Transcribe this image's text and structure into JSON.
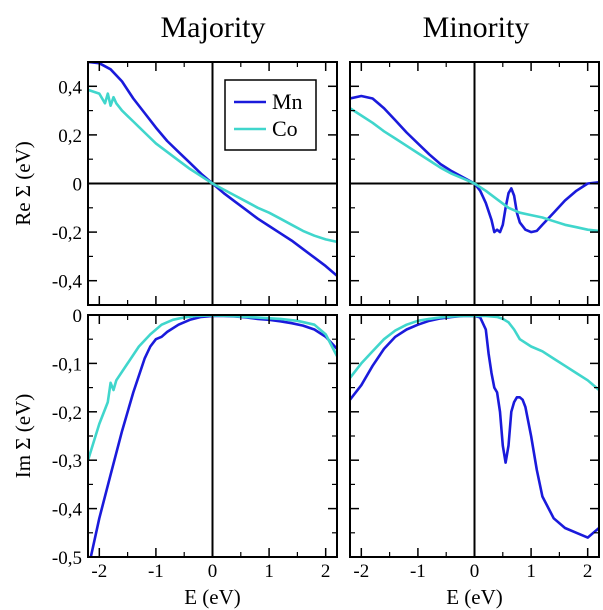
{
  "colors": {
    "Mn": "#1a1adb",
    "Co": "#40d6cc"
  },
  "column_titles": [
    "Majority",
    "Minority"
  ],
  "legend": [
    {
      "name": "Mn",
      "color": "#1a1adb"
    },
    {
      "name": "Co",
      "color": "#40d6cc"
    }
  ],
  "chart_data": [
    {
      "type": "line",
      "panel": "top-left",
      "title": "Majority",
      "ylabel": "Re Σ (eV)",
      "xlabel": "",
      "xlim": [
        -2.2,
        2.2
      ],
      "ylim": [
        -0.5,
        0.5
      ],
      "xticks": [
        -2,
        -1,
        0,
        1,
        2
      ],
      "yticks": [
        0.4,
        0.2,
        0,
        -0.2,
        -0.4
      ],
      "ytick_labels": [
        "0,4",
        "0,2",
        "0",
        "-0,2",
        "-0,4"
      ],
      "xtick_labels": [],
      "legend_position": "top-right",
      "series": [
        {
          "name": "Mn",
          "x": [
            -2.2,
            -2.0,
            -1.8,
            -1.6,
            -1.4,
            -1.2,
            -1.0,
            -0.8,
            -0.6,
            -0.4,
            -0.2,
            0.0,
            0.2,
            0.4,
            0.6,
            0.8,
            1.0,
            1.2,
            1.4,
            1.6,
            1.8,
            2.0,
            2.2
          ],
          "y": [
            0.5,
            0.495,
            0.47,
            0.42,
            0.35,
            0.29,
            0.23,
            0.175,
            0.13,
            0.085,
            0.04,
            0.0,
            -0.04,
            -0.075,
            -0.11,
            -0.145,
            -0.175,
            -0.205,
            -0.235,
            -0.27,
            -0.305,
            -0.34,
            -0.38
          ]
        },
        {
          "name": "Co",
          "x": [
            -2.2,
            -2.0,
            -1.9,
            -1.85,
            -1.8,
            -1.75,
            -1.7,
            -1.6,
            -1.4,
            -1.2,
            -1.0,
            -0.8,
            -0.6,
            -0.4,
            -0.2,
            0.0,
            0.2,
            0.4,
            0.6,
            0.8,
            1.0,
            1.2,
            1.4,
            1.6,
            1.8,
            2.0,
            2.2
          ],
          "y": [
            0.385,
            0.37,
            0.33,
            0.37,
            0.32,
            0.355,
            0.33,
            0.3,
            0.255,
            0.21,
            0.165,
            0.13,
            0.095,
            0.06,
            0.03,
            0.0,
            -0.025,
            -0.05,
            -0.075,
            -0.1,
            -0.12,
            -0.145,
            -0.17,
            -0.195,
            -0.215,
            -0.23,
            -0.24
          ]
        }
      ]
    },
    {
      "type": "line",
      "panel": "top-right",
      "title": "Minority",
      "ylabel": "",
      "xlabel": "",
      "xlim": [
        -2.2,
        2.2
      ],
      "ylim": [
        -0.5,
        0.5
      ],
      "xticks": [
        -2,
        -1,
        0,
        1,
        2
      ],
      "yticks": [
        0.4,
        0.2,
        0,
        -0.2,
        -0.4
      ],
      "ytick_labels": [],
      "xtick_labels": [],
      "series": [
        {
          "name": "Mn",
          "x": [
            -2.2,
            -2.0,
            -1.8,
            -1.6,
            -1.4,
            -1.2,
            -1.0,
            -0.8,
            -0.6,
            -0.4,
            -0.2,
            0.0,
            0.1,
            0.2,
            0.3,
            0.35,
            0.4,
            0.45,
            0.5,
            0.55,
            0.6,
            0.65,
            0.7,
            0.75,
            0.8,
            0.9,
            1.0,
            1.1,
            1.2,
            1.4,
            1.6,
            1.8,
            2.0,
            2.2
          ],
          "y": [
            0.35,
            0.36,
            0.35,
            0.31,
            0.26,
            0.21,
            0.165,
            0.12,
            0.08,
            0.05,
            0.025,
            0.0,
            -0.03,
            -0.08,
            -0.15,
            -0.2,
            -0.19,
            -0.2,
            -0.17,
            -0.1,
            -0.04,
            -0.02,
            -0.05,
            -0.12,
            -0.16,
            -0.19,
            -0.2,
            -0.195,
            -0.17,
            -0.12,
            -0.07,
            -0.03,
            0.0,
            0.005
          ]
        },
        {
          "name": "Co",
          "x": [
            -2.2,
            -2.0,
            -1.8,
            -1.6,
            -1.4,
            -1.2,
            -1.0,
            -0.8,
            -0.6,
            -0.4,
            -0.2,
            0.0,
            0.2,
            0.4,
            0.6,
            0.8,
            1.0,
            1.2,
            1.4,
            1.6,
            1.8,
            2.0,
            2.2
          ],
          "y": [
            0.31,
            0.28,
            0.25,
            0.215,
            0.185,
            0.155,
            0.125,
            0.095,
            0.065,
            0.04,
            0.02,
            0.0,
            -0.03,
            -0.065,
            -0.1,
            -0.12,
            -0.13,
            -0.14,
            -0.155,
            -0.17,
            -0.18,
            -0.19,
            -0.195
          ]
        }
      ]
    },
    {
      "type": "line",
      "panel": "bottom-left",
      "title": "",
      "ylabel": "Im Σ (eV)",
      "xlabel": "E (eV)",
      "xlim": [
        -2.2,
        2.2
      ],
      "ylim": [
        -0.5,
        0
      ],
      "xticks": [
        -2,
        -1,
        0,
        1,
        2
      ],
      "xtick_labels": [
        "-2",
        "-1",
        "0",
        "1",
        "2"
      ],
      "yticks": [
        0,
        -0.1,
        -0.2,
        -0.3,
        -0.4,
        -0.5
      ],
      "ytick_labels": [
        "0",
        "-0,1",
        "-0,2",
        "-0,3",
        "-0,4",
        "-0,5"
      ],
      "series": [
        {
          "name": "Mn",
          "x": [
            -2.15,
            -2.0,
            -1.8,
            -1.6,
            -1.4,
            -1.2,
            -1.1,
            -1.0,
            -0.9,
            -0.8,
            -0.6,
            -0.4,
            -0.2,
            0.0,
            0.2,
            0.4,
            0.6,
            0.8,
            1.0,
            1.2,
            1.4,
            1.6,
            1.8,
            2.0,
            2.2
          ],
          "y": [
            -0.5,
            -0.42,
            -0.33,
            -0.24,
            -0.16,
            -0.09,
            -0.065,
            -0.05,
            -0.045,
            -0.035,
            -0.02,
            -0.01,
            -0.004,
            -0.002,
            -0.002,
            -0.003,
            -0.005,
            -0.008,
            -0.01,
            -0.013,
            -0.017,
            -0.022,
            -0.03,
            -0.045,
            -0.07
          ]
        },
        {
          "name": "Co",
          "x": [
            -2.2,
            -2.0,
            -1.85,
            -1.8,
            -1.75,
            -1.7,
            -1.5,
            -1.3,
            -1.1,
            -0.9,
            -0.7,
            -0.5,
            -0.3,
            0.0,
            0.3,
            0.6,
            0.9,
            1.2,
            1.5,
            1.8,
            2.0,
            2.2
          ],
          "y": [
            -0.3,
            -0.225,
            -0.18,
            -0.14,
            -0.155,
            -0.135,
            -0.1,
            -0.065,
            -0.04,
            -0.02,
            -0.01,
            -0.005,
            -0.002,
            -0.001,
            -0.002,
            -0.004,
            -0.006,
            -0.008,
            -0.012,
            -0.02,
            -0.04,
            -0.085
          ]
        }
      ]
    },
    {
      "type": "line",
      "panel": "bottom-right",
      "title": "",
      "ylabel": "",
      "xlabel": "E (eV)",
      "xlim": [
        -2.2,
        2.2
      ],
      "ylim": [
        -0.5,
        0
      ],
      "xticks": [
        -2,
        -1,
        0,
        1,
        2
      ],
      "xtick_labels": [
        "-2",
        "-1",
        "0",
        "1",
        "2"
      ],
      "yticks": [
        0,
        -0.1,
        -0.2,
        -0.3,
        -0.4,
        -0.5
      ],
      "ytick_labels": [],
      "series": [
        {
          "name": "Mn",
          "x": [
            -2.2,
            -2.0,
            -1.8,
            -1.6,
            -1.4,
            -1.2,
            -1.0,
            -0.8,
            -0.6,
            -0.4,
            -0.2,
            0.0,
            0.1,
            0.2,
            0.25,
            0.3,
            0.35,
            0.4,
            0.45,
            0.5,
            0.55,
            0.6,
            0.65,
            0.7,
            0.75,
            0.8,
            0.85,
            0.9,
            1.0,
            1.1,
            1.2,
            1.4,
            1.6,
            1.8,
            2.0,
            2.1,
            2.2
          ],
          "y": [
            -0.175,
            -0.145,
            -0.105,
            -0.07,
            -0.045,
            -0.03,
            -0.02,
            -0.012,
            -0.007,
            -0.004,
            -0.002,
            -0.002,
            -0.005,
            -0.03,
            -0.08,
            -0.12,
            -0.15,
            -0.16,
            -0.2,
            -0.27,
            -0.305,
            -0.27,
            -0.2,
            -0.18,
            -0.17,
            -0.17,
            -0.175,
            -0.19,
            -0.25,
            -0.32,
            -0.375,
            -0.42,
            -0.44,
            -0.45,
            -0.46,
            -0.45,
            -0.44
          ]
        },
        {
          "name": "Co",
          "x": [
            -2.2,
            -2.0,
            -1.8,
            -1.6,
            -1.4,
            -1.2,
            -1.0,
            -0.8,
            -0.6,
            -0.4,
            -0.2,
            0.0,
            0.2,
            0.4,
            0.5,
            0.6,
            0.7,
            0.8,
            1.0,
            1.2,
            1.4,
            1.6,
            1.8,
            2.0,
            2.2
          ],
          "y": [
            -0.13,
            -0.1,
            -0.075,
            -0.05,
            -0.032,
            -0.02,
            -0.012,
            -0.008,
            -0.005,
            -0.003,
            -0.002,
            -0.002,
            -0.002,
            -0.004,
            -0.008,
            -0.015,
            -0.03,
            -0.05,
            -0.065,
            -0.075,
            -0.09,
            -0.105,
            -0.12,
            -0.135,
            -0.155
          ]
        }
      ]
    }
  ]
}
